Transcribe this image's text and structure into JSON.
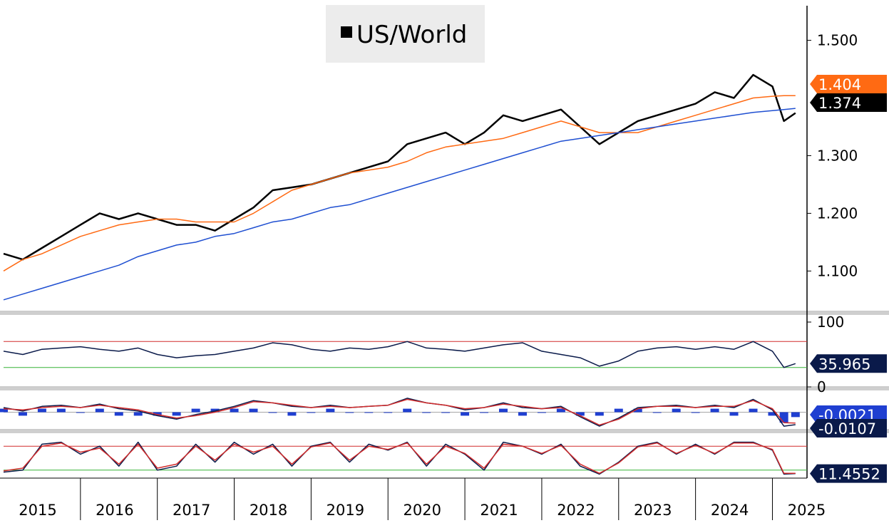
{
  "chart_data": [
    {
      "type": "line",
      "panel": "price",
      "legend": [
        {
          "label": "US/World",
          "color": "#000000"
        }
      ],
      "ylim": [
        1.03,
        1.56
      ],
      "yticks": [
        "1.500",
        "1.300",
        "1.200",
        "1.100"
      ],
      "ytick_values": [
        1.5,
        1.3,
        1.2,
        1.1
      ],
      "x": [
        2015.0,
        2015.25,
        2015.5,
        2015.75,
        2016.0,
        2016.25,
        2016.5,
        2016.75,
        2017.0,
        2017.25,
        2017.5,
        2017.75,
        2018.0,
        2018.25,
        2018.5,
        2018.75,
        2019.0,
        2019.25,
        2019.5,
        2019.75,
        2020.0,
        2020.25,
        2020.5,
        2020.75,
        2021.0,
        2021.25,
        2021.5,
        2021.75,
        2022.0,
        2022.25,
        2022.5,
        2022.75,
        2023.0,
        2023.25,
        2023.5,
        2023.75,
        2024.0,
        2024.25,
        2024.5,
        2024.75,
        2025.0,
        2025.15,
        2025.3
      ],
      "series": [
        {
          "name": "US/World",
          "color": "#000000",
          "values": [
            1.13,
            1.12,
            1.14,
            1.16,
            1.18,
            1.2,
            1.19,
            1.2,
            1.19,
            1.18,
            1.18,
            1.17,
            1.19,
            1.21,
            1.24,
            1.245,
            1.25,
            1.26,
            1.27,
            1.28,
            1.29,
            1.32,
            1.33,
            1.34,
            1.32,
            1.34,
            1.37,
            1.36,
            1.37,
            1.38,
            1.35,
            1.32,
            1.34,
            1.36,
            1.37,
            1.38,
            1.39,
            1.41,
            1.4,
            1.44,
            1.42,
            1.36,
            1.374
          ]
        },
        {
          "color": "#ff6a13",
          "values": [
            1.1,
            1.12,
            1.13,
            1.145,
            1.16,
            1.17,
            1.18,
            1.185,
            1.19,
            1.19,
            1.185,
            1.185,
            1.185,
            1.2,
            1.22,
            1.24,
            1.25,
            1.26,
            1.27,
            1.275,
            1.28,
            1.29,
            1.305,
            1.315,
            1.32,
            1.325,
            1.33,
            1.34,
            1.35,
            1.36,
            1.35,
            1.34,
            1.34,
            1.34,
            1.35,
            1.36,
            1.37,
            1.38,
            1.39,
            1.4,
            1.403,
            1.404,
            1.404
          ]
        },
        {
          "color": "#1f4fd1",
          "values": [
            1.05,
            1.06,
            1.07,
            1.08,
            1.09,
            1.1,
            1.11,
            1.125,
            1.135,
            1.145,
            1.15,
            1.16,
            1.165,
            1.175,
            1.185,
            1.19,
            1.2,
            1.21,
            1.215,
            1.225,
            1.235,
            1.245,
            1.255,
            1.265,
            1.275,
            1.285,
            1.295,
            1.305,
            1.315,
            1.325,
            1.33,
            1.335,
            1.34,
            1.345,
            1.35,
            1.355,
            1.36,
            1.365,
            1.37,
            1.375,
            1.378,
            1.38,
            1.382
          ]
        }
      ],
      "last_values": [
        {
          "label": "1.404",
          "color": "#ff6a13"
        },
        {
          "label": "1.374",
          "color": "#000000"
        }
      ]
    },
    {
      "type": "line",
      "panel": "rsi",
      "ylim": [
        0,
        100
      ],
      "yticks": [
        "100",
        "0"
      ],
      "ytick_values": [
        100,
        0
      ],
      "hlines": [
        {
          "value": 70,
          "color": "#d22b2b"
        },
        {
          "value": 30,
          "color": "#36b336"
        }
      ],
      "series": [
        {
          "color": "#0a1a4a",
          "values": [
            55,
            50,
            58,
            60,
            62,
            58,
            55,
            60,
            50,
            45,
            48,
            50,
            55,
            60,
            68,
            65,
            58,
            55,
            60,
            58,
            62,
            70,
            60,
            58,
            55,
            60,
            65,
            68,
            55,
            50,
            45,
            32,
            40,
            55,
            60,
            62,
            58,
            62,
            58,
            70,
            55,
            30,
            35.965
          ]
        }
      ],
      "last_values": [
        {
          "label": "35.965",
          "color": "#0a1a4a"
        }
      ]
    },
    {
      "type": "line",
      "panel": "macd",
      "series": [
        {
          "color": "#0a1a4a",
          "values": [
            0.004,
            0.001,
            0.005,
            0.006,
            0.004,
            0.007,
            0.003,
            0.001,
            -0.003,
            -0.006,
            -0.002,
            0.001,
            0.005,
            0.01,
            0.008,
            0.005,
            0.004,
            0.006,
            0.004,
            0.005,
            0.006,
            0.012,
            0.008,
            0.006,
            0.002,
            0.004,
            0.008,
            0.004,
            0.003,
            0.005,
            -0.004,
            -0.012,
            -0.005,
            0.004,
            0.005,
            0.006,
            0.004,
            0.006,
            0.004,
            0.011,
            0.002,
            -0.012,
            -0.0107
          ]
        },
        {
          "color": "#d22b2b",
          "values": [
            0.003,
            0.002,
            0.004,
            0.005,
            0.004,
            0.006,
            0.004,
            0.002,
            -0.002,
            -0.005,
            -0.003,
            0.0,
            0.004,
            0.009,
            0.008,
            0.006,
            0.004,
            0.005,
            0.004,
            0.005,
            0.006,
            0.011,
            0.008,
            0.006,
            0.003,
            0.004,
            0.007,
            0.005,
            0.003,
            0.004,
            -0.003,
            -0.011,
            -0.006,
            0.003,
            0.005,
            0.005,
            0.004,
            0.005,
            0.005,
            0.01,
            0.003,
            -0.009,
            -0.0093
          ]
        }
      ],
      "last_values": [
        {
          "label": "-0.0021",
          "color": "#1f3fd1"
        },
        {
          "label": "-0.0107",
          "color": "#0a1a4a"
        }
      ]
    },
    {
      "type": "line",
      "panel": "stochastic",
      "ylim": [
        0,
        100
      ],
      "hlines": [
        {
          "value": 80,
          "color": "#d22b2b"
        },
        {
          "value": 20,
          "color": "#36b336"
        }
      ],
      "series": [
        {
          "color": "#0a1a4a",
          "values": [
            15,
            20,
            85,
            90,
            60,
            80,
            30,
            90,
            20,
            30,
            85,
            40,
            90,
            60,
            85,
            30,
            80,
            90,
            40,
            85,
            70,
            90,
            30,
            85,
            60,
            20,
            90,
            80,
            60,
            85,
            30,
            10,
            40,
            80,
            90,
            60,
            85,
            60,
            90,
            90,
            70,
            10,
            11.4552
          ]
        },
        {
          "color": "#d22b2b",
          "values": [
            18,
            25,
            80,
            88,
            65,
            75,
            35,
            85,
            25,
            35,
            80,
            45,
            85,
            65,
            80,
            35,
            78,
            88,
            45,
            80,
            72,
            88,
            35,
            80,
            62,
            25,
            85,
            80,
            62,
            82,
            35,
            12,
            38,
            78,
            88,
            62,
            82,
            62,
            88,
            88,
            72,
            12,
            12
          ]
        }
      ],
      "last_values": [
        {
          "label": "11.4552",
          "color": "#0a1a4a"
        }
      ]
    }
  ],
  "years": [
    "2015",
    "2016",
    "2017",
    "2018",
    "2019",
    "2020",
    "2021",
    "2022",
    "2023",
    "2024",
    "2025"
  ]
}
